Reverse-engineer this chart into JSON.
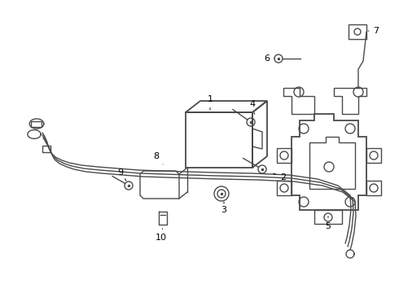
{
  "background_color": "#ffffff",
  "line_color": "#4a4a4a",
  "text_color": "#000000",
  "fig_width": 4.9,
  "fig_height": 3.6,
  "dpi": 100
}
